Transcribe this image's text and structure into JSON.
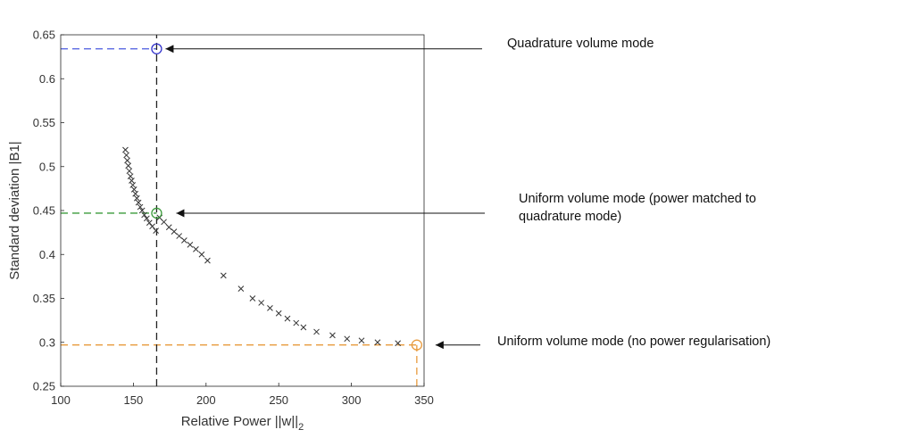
{
  "chart_data": {
    "type": "scatter",
    "xlabel": "Relative Power ||w||",
    "xlabel_subscript": "2",
    "ylabel": "Standard deviation |B1|",
    "xlim": [
      100,
      350
    ],
    "ylim": [
      0.25,
      0.65
    ],
    "xticks": [
      "100",
      "150",
      "200",
      "250",
      "300",
      "350"
    ],
    "yticks": [
      "0.25",
      "0.3",
      "0.35",
      "0.4",
      "0.45",
      "0.5",
      "0.55",
      "0.6",
      "0.65"
    ],
    "grid": false,
    "pareto_points": {
      "marker": "x",
      "color": "#333333",
      "x": [
        144.5,
        145.2,
        145.8,
        146.5,
        147.2,
        148,
        148.8,
        149.6,
        150.5,
        151.4,
        152.4,
        153.5,
        154.7,
        156,
        157.5,
        159.2,
        161,
        163,
        165.5,
        168,
        171,
        174.5,
        178,
        181.5,
        185,
        189,
        193,
        197,
        201,
        212,
        224,
        232,
        238,
        244,
        250,
        256,
        262,
        267,
        276,
        287,
        297,
        307,
        318,
        332
      ],
      "y": [
        0.519,
        0.513,
        0.507,
        0.501,
        0.495,
        0.489,
        0.484,
        0.479,
        0.474,
        0.469,
        0.464,
        0.459,
        0.454,
        0.45,
        0.445,
        0.441,
        0.436,
        0.432,
        0.427,
        0.442,
        0.437,
        0.431,
        0.426,
        0.421,
        0.416,
        0.411,
        0.406,
        0.4,
        0.393,
        0.376,
        0.361,
        0.35,
        0.345,
        0.339,
        0.333,
        0.327,
        0.322,
        0.317,
        0.312,
        0.308,
        0.304,
        0.302,
        0.3,
        0.299
      ]
    },
    "highlighted_points": [
      {
        "x": 166,
        "y": 0.634,
        "color": "#3333cc"
      },
      {
        "x": 166,
        "y": 0.447,
        "color": "#3a9a3a"
      },
      {
        "x": 345,
        "y": 0.297,
        "color": "#e89a3c"
      }
    ],
    "reference_lines": [
      {
        "orientation": "horizontal",
        "value": 0.634,
        "from": 100,
        "to": 166,
        "color": "#4a5adf"
      },
      {
        "orientation": "horizontal",
        "value": 0.447,
        "from": 100,
        "to": 166,
        "color": "#3a9a3a"
      },
      {
        "orientation": "horizontal",
        "value": 0.297,
        "from": 100,
        "to": 345,
        "color": "#e89a3c"
      },
      {
        "orientation": "vertical",
        "value": 166,
        "from": 0.25,
        "to": 0.65,
        "color": "#222222"
      },
      {
        "orientation": "vertical",
        "value": 345,
        "from": 0.25,
        "to": 0.297,
        "color": "#e89a3c"
      }
    ],
    "annotations": [
      {
        "lines": [
          "Quadrature volume mode"
        ],
        "target": {
          "x": 166,
          "y": 0.634
        }
      },
      {
        "lines": [
          "Uniform volume mode (power matched to",
          "quadrature mode)"
        ],
        "target": {
          "x": 166,
          "y": 0.447
        }
      },
      {
        "lines": [
          "Uniform volume mode (no power regularisation)"
        ],
        "target": {
          "x": 345,
          "y": 0.297
        }
      }
    ]
  }
}
